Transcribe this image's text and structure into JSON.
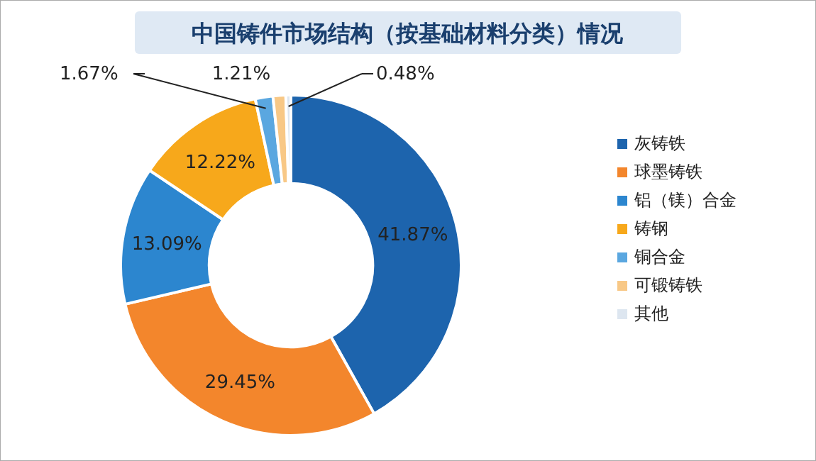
{
  "chart_data": {
    "type": "donut",
    "title": "中国铸件市场结构（按基础材料分类）情况",
    "categories": [
      "灰铸铁",
      "球墨铸铁",
      "铝（镁）合金",
      "铸钢",
      "铜合金",
      "可锻铸铁",
      "其他"
    ],
    "values": [
      41.87,
      29.45,
      13.09,
      12.22,
      1.67,
      1.21,
      0.48
    ],
    "value_labels": [
      "41.87%",
      "29.45%",
      "13.09%",
      "12.22%",
      "1.67%",
      "1.21%",
      "0.48%"
    ],
    "colors": [
      "#1d64ad",
      "#f3862c",
      "#2c86cf",
      "#f7a81b",
      "#5aa7e0",
      "#f8c886",
      "#dde6f0"
    ],
    "legend": "right"
  }
}
